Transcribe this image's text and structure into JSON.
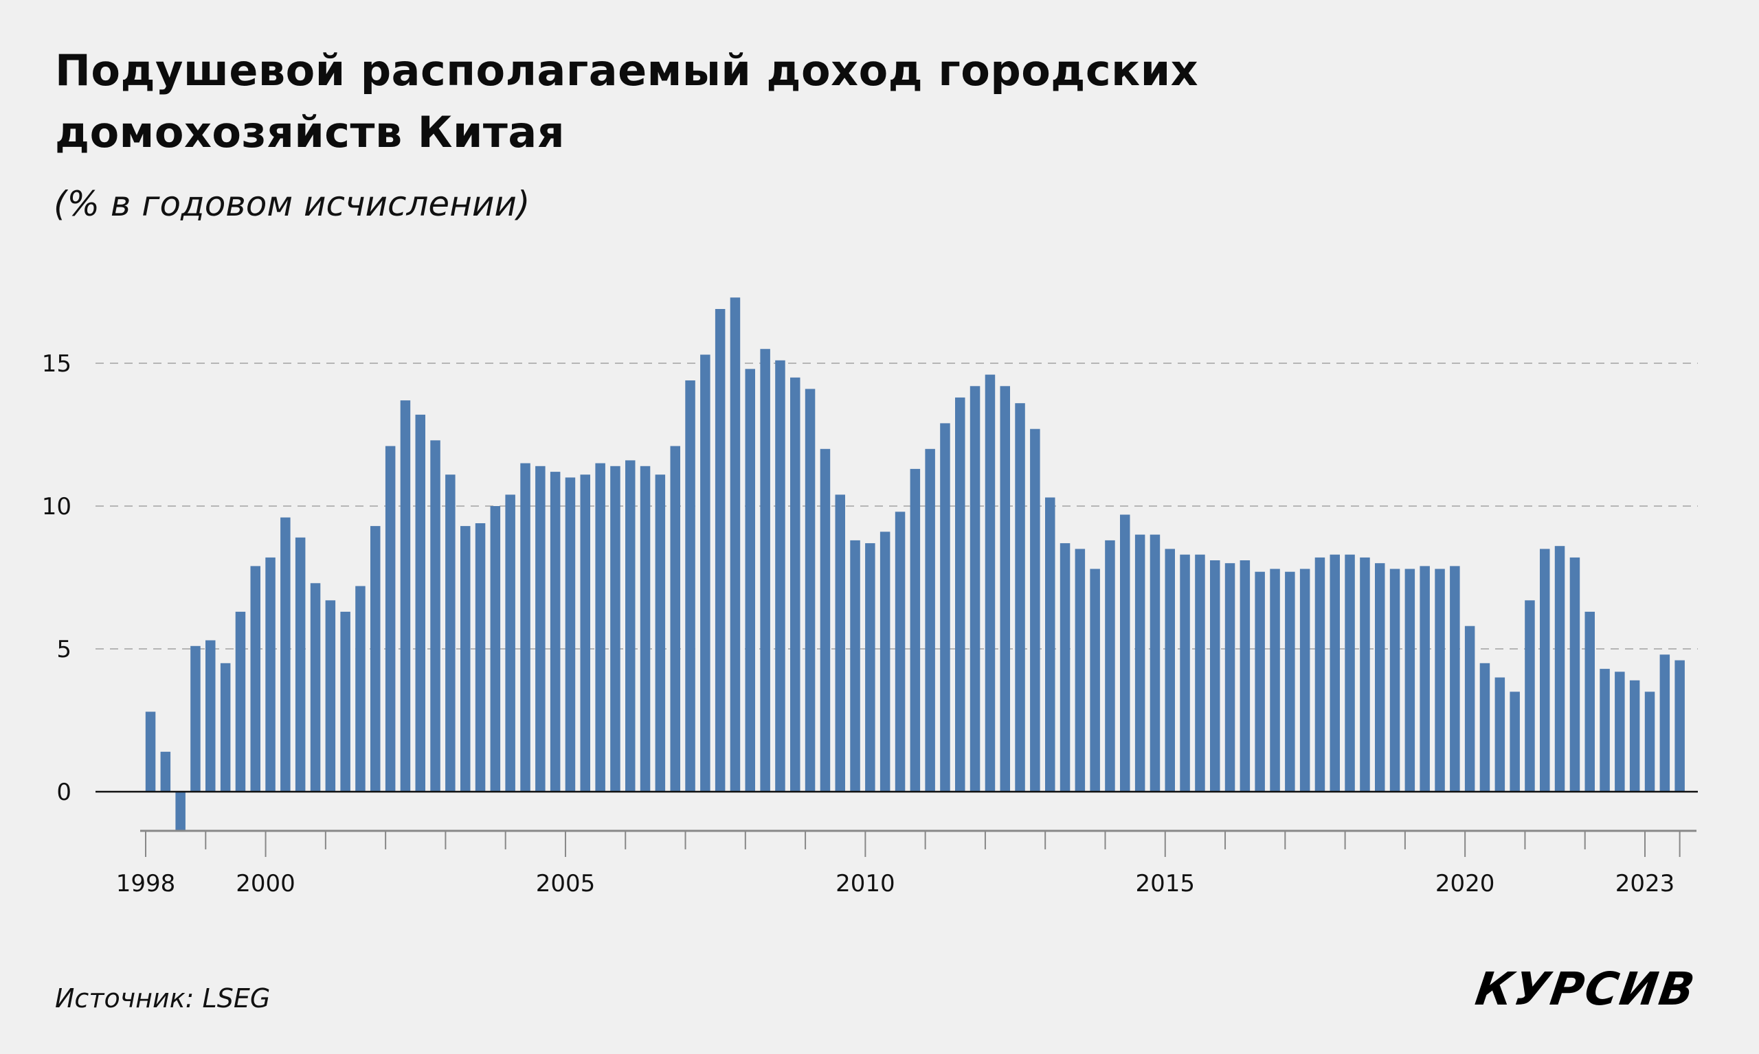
{
  "header": {
    "title": "Подушевой располагаемый доход городских домохозяйств Китая",
    "subtitle": "(% в годовом исчислении)"
  },
  "footer": {
    "source": "Источник: LSEG",
    "logo": "КУРСИВ"
  },
  "colors": {
    "bar": "#4f7cb0",
    "background": "#f0f0f0",
    "gridline": "#b5b5b5",
    "zero_line": "#111111",
    "axis_line": "#888888"
  },
  "chart_data": {
    "type": "bar",
    "title": "Подушевой располагаемый доход городских домохозяйств Китая",
    "subtitle": "(% в годовом исчислении)",
    "xlabel": "",
    "ylabel": "% в годовом исчислении",
    "frequency": "quarterly",
    "ylim": [
      -1.4,
      17.5
    ],
    "yticks": [
      0,
      5,
      10,
      15
    ],
    "ytick_labels": [
      "0",
      "5",
      "10",
      "15"
    ],
    "xtick_labels": [
      "1998",
      "2000",
      "2005",
      "2010",
      "2015",
      "2020",
      "2023"
    ],
    "grid": "horizontal dashed",
    "legend": "none",
    "categories": [
      "1998Q1",
      "1998Q2",
      "1998Q3",
      "1998Q4",
      "1999Q1",
      "1999Q2",
      "1999Q3",
      "1999Q4",
      "2000Q1",
      "2000Q2",
      "2000Q3",
      "2000Q4",
      "2001Q1",
      "2001Q2",
      "2001Q3",
      "2001Q4",
      "2002Q1",
      "2002Q2",
      "2002Q3",
      "2002Q4",
      "2003Q1",
      "2003Q2",
      "2003Q3",
      "2003Q4",
      "2004Q1",
      "2004Q2",
      "2004Q3",
      "2004Q4",
      "2005Q1",
      "2005Q2",
      "2005Q3",
      "2005Q4",
      "2006Q1",
      "2006Q2",
      "2006Q3",
      "2006Q4",
      "2007Q1",
      "2007Q2",
      "2007Q3",
      "2007Q4",
      "2008Q1",
      "2008Q2",
      "2008Q3",
      "2008Q4",
      "2009Q1",
      "2009Q2",
      "2009Q3",
      "2009Q4",
      "2010Q1",
      "2010Q2",
      "2010Q3",
      "2010Q4",
      "2011Q1",
      "2011Q2",
      "2011Q3",
      "2011Q4",
      "2012Q1",
      "2012Q2",
      "2012Q3",
      "2012Q4",
      "2013Q1",
      "2013Q2",
      "2013Q3",
      "2013Q4",
      "2014Q1",
      "2014Q2",
      "2014Q3",
      "2014Q4",
      "2015Q1",
      "2015Q2",
      "2015Q3",
      "2015Q4",
      "2016Q1",
      "2016Q2",
      "2016Q3",
      "2016Q4",
      "2017Q1",
      "2017Q2",
      "2017Q3",
      "2017Q4",
      "2018Q1",
      "2018Q2",
      "2018Q3",
      "2018Q4",
      "2019Q1",
      "2019Q2",
      "2019Q3",
      "2019Q4",
      "2020Q1",
      "2020Q2",
      "2020Q3",
      "2020Q4",
      "2021Q1",
      "2021Q2",
      "2021Q3",
      "2021Q4",
      "2022Q1",
      "2022Q2",
      "2022Q3",
      "2022Q4",
      "2023Q1",
      "2023Q2",
      "2023Q3"
    ],
    "values": [
      2.8,
      1.4,
      -1.4,
      5.1,
      5.3,
      4.5,
      6.3,
      7.9,
      8.2,
      9.6,
      8.9,
      7.3,
      6.7,
      6.3,
      7.2,
      9.3,
      12.1,
      13.7,
      13.2,
      12.3,
      11.1,
      9.3,
      9.4,
      10.0,
      10.4,
      11.5,
      11.4,
      11.2,
      11.0,
      11.1,
      11.5,
      11.4,
      11.6,
      11.4,
      11.1,
      12.1,
      14.4,
      15.3,
      16.9,
      17.3,
      14.8,
      15.5,
      15.1,
      14.5,
      14.1,
      12.0,
      10.4,
      8.8,
      8.7,
      9.1,
      9.8,
      11.3,
      12.0,
      12.9,
      13.8,
      14.2,
      14.6,
      14.2,
      13.6,
      12.7,
      10.3,
      8.7,
      8.5,
      7.8,
      8.8,
      9.7,
      9.0,
      9.0,
      8.5,
      8.3,
      8.3,
      8.1,
      8.0,
      8.1,
      7.7,
      7.8,
      7.7,
      7.8,
      8.2,
      8.3,
      8.3,
      8.2,
      8.0,
      7.8,
      7.8,
      7.9,
      7.8,
      7.9,
      5.8,
      4.5,
      4.0,
      3.5,
      6.7,
      8.5,
      8.6,
      8.2,
      6.3,
      4.3,
      4.2,
      3.9,
      3.5,
      4.8,
      4.6
    ]
  }
}
